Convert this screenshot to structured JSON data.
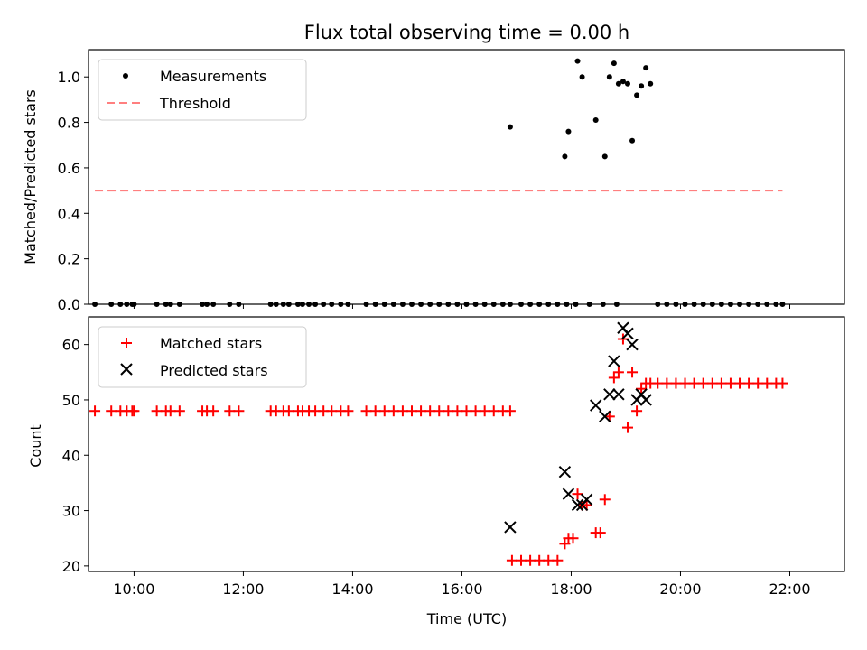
{
  "title": "Flux total observing time = 0.00 h",
  "colors": {
    "measurements": "#000000",
    "threshold": "#ff7f7f",
    "matched": "#ff0000",
    "predicted": "#000000"
  },
  "chart_data": [
    {
      "type": "scatter",
      "ylabel": "Matched/Predicted stars",
      "xlim": [
        "09:10",
        "23:00"
      ],
      "ylim": [
        0,
        1.12
      ],
      "yticks": [
        "0.0",
        "0.2",
        "0.4",
        "0.6",
        "0.8",
        "1.0"
      ],
      "legend_position": "top-left",
      "grid": false,
      "series": [
        {
          "name": "Measurements",
          "marker": "dot",
          "x": [
            "09:17",
            "09:35",
            "09:45",
            "09:52",
            "09:58",
            "10:00",
            "10:25",
            "10:35",
            "10:40",
            "10:50",
            "11:15",
            "11:20",
            "11:27",
            "11:45",
            "11:55",
            "12:30",
            "12:36",
            "12:44",
            "12:50",
            "13:00",
            "13:05",
            "13:12",
            "13:19",
            "13:28",
            "13:37",
            "13:47",
            "13:55",
            "14:15",
            "14:25",
            "14:35",
            "14:45",
            "14:55",
            "15:05",
            "15:15",
            "15:25",
            "15:35",
            "15:45",
            "15:55",
            "16:05",
            "16:15",
            "16:25",
            "16:35",
            "16:45",
            "16:53",
            "17:05",
            "17:15",
            "17:25",
            "17:35",
            "17:45",
            "17:55",
            "18:05",
            "18:20",
            "18:35",
            "18:50",
            "19:35",
            "19:45",
            "19:55",
            "20:05",
            "20:15",
            "20:25",
            "20:35",
            "20:45",
            "20:55",
            "21:05",
            "21:15",
            "21:25",
            "21:35",
            "21:45",
            "21:52",
            "16:53",
            "17:53",
            "17:57",
            "18:07",
            "18:12",
            "18:27",
            "18:37",
            "18:42",
            "18:47",
            "18:52",
            "18:57",
            "19:02",
            "19:07",
            "19:12",
            "19:17",
            "19:22",
            "19:27"
          ],
          "y": [
            0,
            0,
            0,
            0,
            0,
            0,
            0,
            0,
            0,
            0,
            0,
            0,
            0,
            0,
            0,
            0,
            0,
            0,
            0,
            0,
            0,
            0,
            0,
            0,
            0,
            0,
            0,
            0,
            0,
            0,
            0,
            0,
            0,
            0,
            0,
            0,
            0,
            0,
            0,
            0,
            0,
            0,
            0,
            0,
            0,
            0,
            0,
            0,
            0,
            0,
            0,
            0,
            0,
            0,
            0,
            0,
            0,
            0,
            0,
            0,
            0,
            0,
            0,
            0,
            0,
            0,
            0,
            0,
            0,
            0.78,
            0.65,
            0.76,
            1.07,
            1.0,
            0.81,
            0.65,
            1.0,
            1.06,
            0.97,
            0.98,
            0.97,
            0.72,
            0.92,
            0.96,
            1.04,
            0.97
          ]
        },
        {
          "name": "Threshold",
          "marker": "dashed-line",
          "x": [
            "09:17",
            "21:52"
          ],
          "y": [
            0.5,
            0.5
          ]
        }
      ]
    },
    {
      "type": "scatter",
      "ylabel": "Count",
      "xlabel": "Time (UTC)",
      "xlim": [
        "09:10",
        "23:00"
      ],
      "ylim": [
        19,
        65
      ],
      "yticks": [
        "20",
        "30",
        "40",
        "50",
        "60"
      ],
      "xticks": [
        "10:00",
        "12:00",
        "14:00",
        "16:00",
        "18:00",
        "20:00",
        "22:00"
      ],
      "legend_position": "top-left",
      "grid": false,
      "series": [
        {
          "name": "Matched stars",
          "marker": "plus",
          "x": [
            "09:17",
            "09:35",
            "09:45",
            "09:52",
            "09:58",
            "10:00",
            "10:25",
            "10:35",
            "10:40",
            "10:50",
            "11:15",
            "11:20",
            "11:27",
            "11:45",
            "11:55",
            "12:30",
            "12:36",
            "12:44",
            "12:50",
            "13:00",
            "13:05",
            "13:12",
            "13:19",
            "13:28",
            "13:37",
            "13:47",
            "13:55",
            "14:15",
            "14:25",
            "14:35",
            "14:45",
            "14:55",
            "15:05",
            "15:15",
            "15:25",
            "15:35",
            "15:45",
            "15:55",
            "16:05",
            "16:15",
            "16:25",
            "16:35",
            "16:45",
            "16:53",
            "16:55",
            "17:05",
            "17:15",
            "17:25",
            "17:35",
            "17:45",
            "17:53",
            "17:57",
            "18:02",
            "18:07",
            "18:12",
            "18:17",
            "18:27",
            "18:32",
            "18:37",
            "18:42",
            "18:47",
            "18:52",
            "18:57",
            "19:02",
            "19:07",
            "19:12",
            "19:17",
            "19:22",
            "19:27",
            "19:35",
            "19:45",
            "19:55",
            "20:05",
            "20:15",
            "20:25",
            "20:35",
            "20:45",
            "20:55",
            "21:05",
            "21:15",
            "21:25",
            "21:35",
            "21:45",
            "21:52"
          ],
          "y": [
            48,
            48,
            48,
            48,
            48,
            48,
            48,
            48,
            48,
            48,
            48,
            48,
            48,
            48,
            48,
            48,
            48,
            48,
            48,
            48,
            48,
            48,
            48,
            48,
            48,
            48,
            48,
            48,
            48,
            48,
            48,
            48,
            48,
            48,
            48,
            48,
            48,
            48,
            48,
            48,
            48,
            48,
            48,
            48,
            21,
            21,
            21,
            21,
            21,
            21,
            24,
            25,
            25,
            33,
            31,
            31,
            26,
            26,
            32,
            47,
            54,
            55,
            61,
            45,
            55,
            48,
            52,
            53,
            53,
            53,
            53,
            53,
            53,
            53,
            53,
            53,
            53,
            53,
            53,
            53,
            53,
            53,
            53,
            53
          ]
        },
        {
          "name": "Predicted stars",
          "marker": "x",
          "x": [
            "16:53",
            "17:53",
            "17:57",
            "18:07",
            "18:12",
            "18:17",
            "18:27",
            "18:37",
            "18:42",
            "18:47",
            "18:52",
            "18:57",
            "19:02",
            "19:07",
            "19:12",
            "19:17",
            "19:22"
          ],
          "y": [
            27,
            37,
            33,
            31,
            31,
            32,
            49,
            47,
            51,
            57,
            51,
            63,
            62,
            60,
            50,
            51,
            50
          ]
        }
      ]
    }
  ]
}
